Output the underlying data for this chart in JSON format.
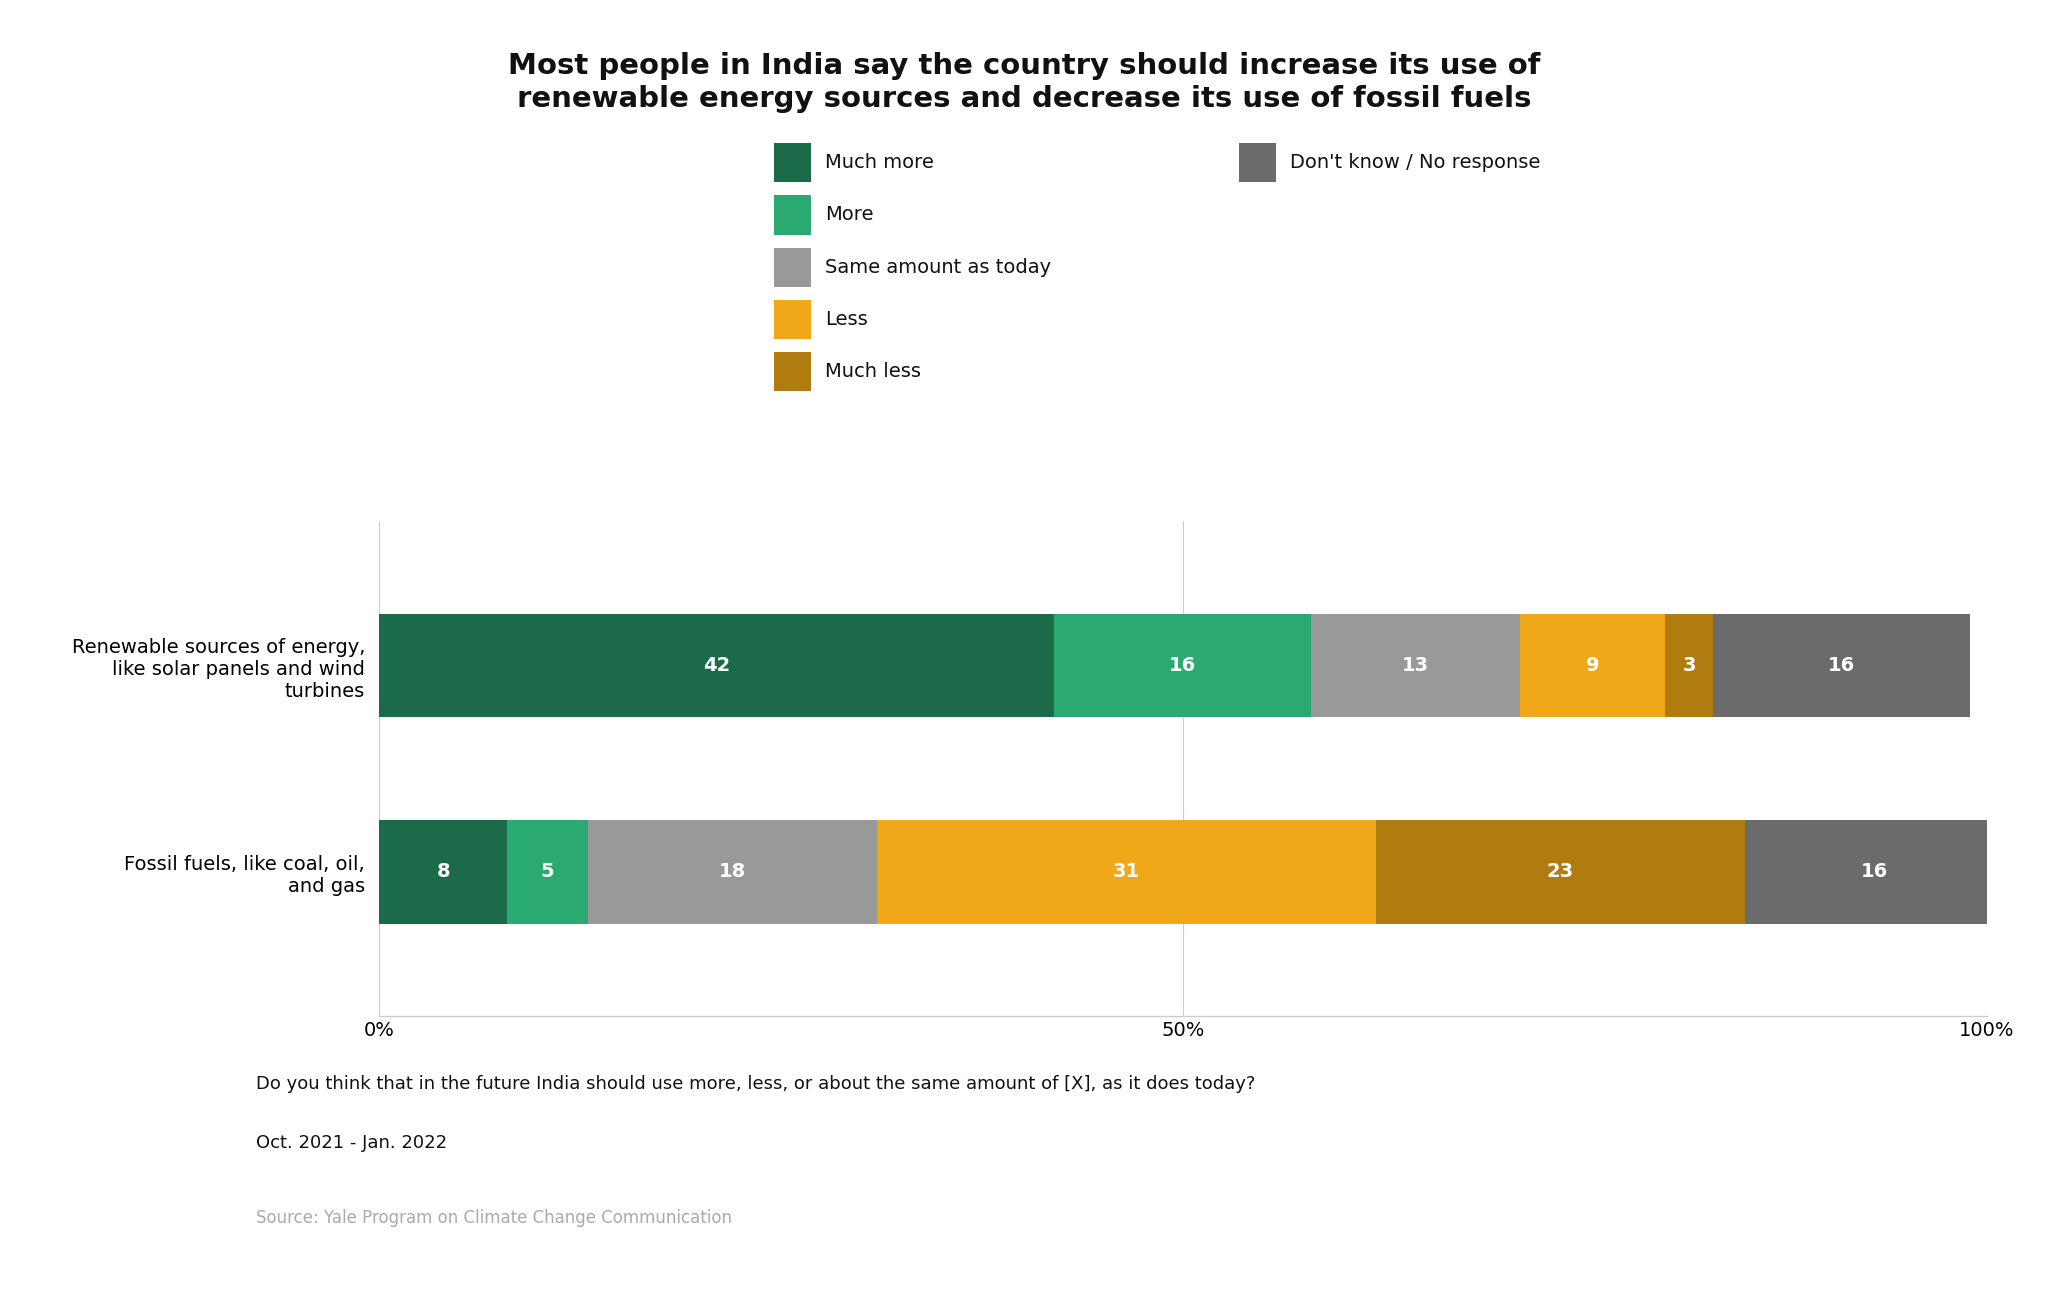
{
  "title": "Most people in India say the country should increase its use of\nrenewable energy sources and decrease its use of fossil fuels",
  "categories": [
    "Fossil fuels, like coal, oil,\nand gas",
    "Renewable sources of energy,\nlike solar panels and wind\nturbines"
  ],
  "segments": [
    "Much more",
    "More",
    "Same amount as today",
    "Less",
    "Much less",
    "Don't know / No response"
  ],
  "values": [
    [
      8,
      5,
      18,
      31,
      23,
      16
    ],
    [
      42,
      16,
      13,
      9,
      3,
      16
    ]
  ],
  "colors": [
    "#1b6b4a",
    "#2aaa72",
    "#999999",
    "#f0a818",
    "#b07c10",
    "#6b6b6b"
  ],
  "background_color": "#ffffff",
  "title_fontsize": 21,
  "label_fontsize": 14,
  "tick_fontsize": 14,
  "legend_fontsize": 14,
  "annotation_text": "Do you think that in the future India should use more, less, or about the same amount of [X], as it does today?",
  "date_text": "Oct. 2021 - Jan. 2022",
  "source_text": "Source: Yale Program on Climate Change Communication"
}
